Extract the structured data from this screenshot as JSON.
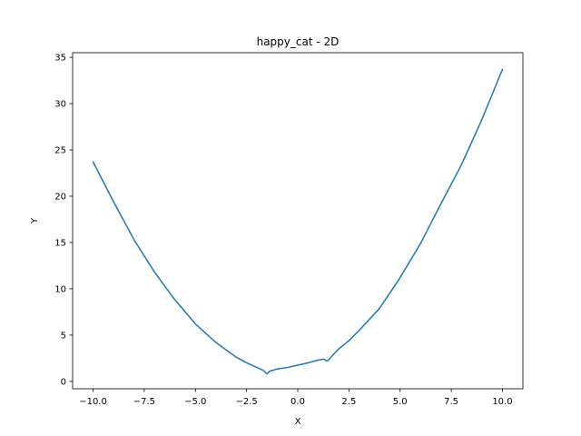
{
  "chart_data": {
    "type": "line",
    "title": "happy_cat - 2D",
    "xlabel": "X",
    "ylabel": "Y",
    "xlim": [
      -11,
      11
    ],
    "ylim": [
      -0.8,
      35.5
    ],
    "xticks": [
      -10,
      -7.5,
      -5,
      -2.5,
      0,
      2.5,
      5,
      7.5,
      10
    ],
    "xtick_labels": [
      "−10.0",
      "−7.5",
      "−5.0",
      "−2.5",
      "0.0",
      "2.5",
      "5.0",
      "7.5",
      "10.0"
    ],
    "yticks": [
      0,
      5,
      10,
      15,
      20,
      25,
      30,
      35
    ],
    "ytick_labels": [
      "0",
      "5",
      "10",
      "15",
      "20",
      "25",
      "30",
      "35"
    ],
    "grid": false,
    "series": [
      {
        "color": "#1f77b4",
        "x": [
          -10,
          -9,
          -8,
          -7,
          -6,
          -5,
          -4,
          -3,
          -2.5,
          -2,
          -1.7,
          -1.5,
          -1.4,
          -1.3,
          -1.2,
          -1,
          -0.5,
          0,
          0.5,
          1,
          1.3,
          1.4,
          1.5,
          1.7,
          2,
          2.5,
          3,
          4,
          5,
          6,
          7,
          8,
          9,
          10
        ],
        "y": [
          23.7,
          19.4,
          15.3,
          11.8,
          8.8,
          6.2,
          4.2,
          2.6,
          2.0,
          1.5,
          1.2,
          0.8,
          1.05,
          1.15,
          1.2,
          1.35,
          1.5,
          1.75,
          2.0,
          2.3,
          2.4,
          2.2,
          2.3,
          2.8,
          3.5,
          4.4,
          5.5,
          7.9,
          11.2,
          14.9,
          19.2,
          23.4,
          28.3,
          33.7
        ]
      }
    ]
  }
}
